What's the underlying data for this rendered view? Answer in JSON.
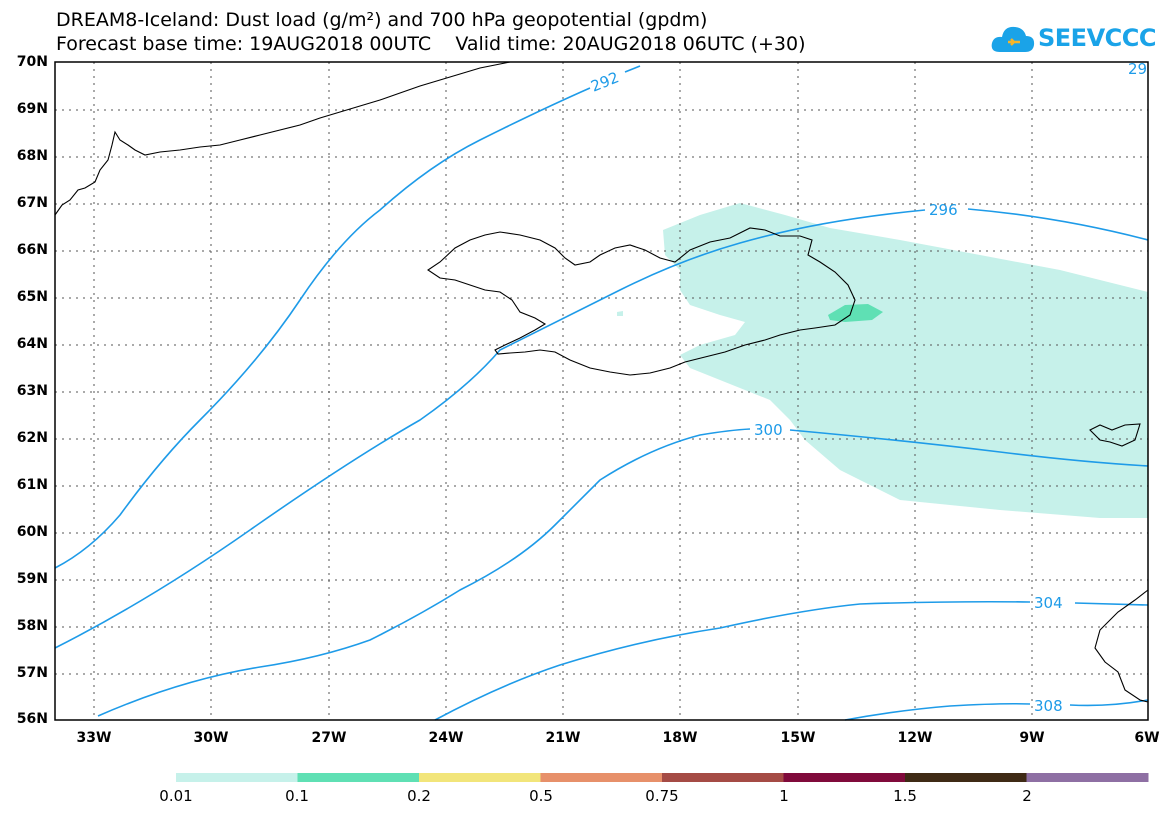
{
  "title": {
    "line1": "DREAM8-Iceland: Dust load (g/m²) and 700 hPa geopotential (gpdm)",
    "line2": "Forecast base time: 19AUG2018 00UTC    Valid time: 20AUG2018 06UTC (+30)"
  },
  "logo": {
    "text": "SEEVCCC",
    "icon": "cloud-icon",
    "color": "#1aa3e8"
  },
  "map": {
    "lat_labels": [
      "70N",
      "69N",
      "68N",
      "67N",
      "66N",
      "65N",
      "64N",
      "63N",
      "62N",
      "61N",
      "60N",
      "59N",
      "58N",
      "57N",
      "56N"
    ],
    "lon_labels": [
      "33W",
      "30W",
      "27W",
      "24W",
      "21W",
      "18W",
      "15W",
      "12W",
      "9W",
      "6W"
    ],
    "contour_labels": [
      "292",
      "296",
      "300",
      "304",
      "308",
      "29"
    ],
    "contour_color": "#1e9be8",
    "coast_color": "#000000"
  },
  "colorbar": {
    "labels": [
      "0.01",
      "0.1",
      "0.2",
      "0.5",
      "0.75",
      "1",
      "1.5",
      "2"
    ],
    "colors": [
      "#c6f1ea",
      "#5fe0b4",
      "#f2e57a",
      "#e7906a",
      "#a54b45",
      "#800a3b",
      "#3f2a15",
      "#8e6fa3"
    ]
  }
}
